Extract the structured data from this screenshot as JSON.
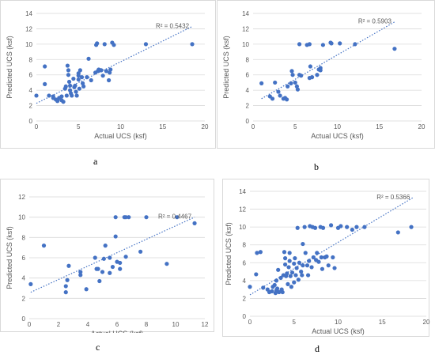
{
  "chart_data": [
    {
      "type": "scatter",
      "caption": "a",
      "xlabel": "Actual UCS  (ksf)",
      "ylabel": "Predicted  UCS  (ksf)",
      "xlim": [
        0,
        20
      ],
      "ylim": [
        0,
        14
      ],
      "xticks": [
        0,
        5,
        10,
        15,
        20
      ],
      "yticks": [
        0,
        2,
        4,
        6,
        8,
        10,
        12,
        14
      ],
      "grid": true,
      "r2_label": "R² = 0.5432",
      "trendline": {
        "x": [
          0,
          18.5
        ],
        "y": [
          2.3,
          12.3
        ]
      },
      "color": "#4472C4",
      "points": [
        [
          0,
          3.3
        ],
        [
          1,
          7.1
        ],
        [
          1,
          4.8
        ],
        [
          1.5,
          3.3
        ],
        [
          2,
          3.0
        ],
        [
          2,
          3.2
        ],
        [
          2.3,
          2.8
        ],
        [
          2.5,
          2.6
        ],
        [
          2.7,
          3.0
        ],
        [
          3,
          2.7
        ],
        [
          3,
          3.2
        ],
        [
          3.2,
          2.5
        ],
        [
          3.4,
          4.2
        ],
        [
          3.5,
          4.5
        ],
        [
          3.6,
          3.3
        ],
        [
          3.7,
          7.2
        ],
        [
          3.8,
          6.6
        ],
        [
          3.8,
          6.0
        ],
        [
          3.9,
          5.1
        ],
        [
          4,
          4.6
        ],
        [
          4,
          4.0
        ],
        [
          4.1,
          3.6
        ],
        [
          4.2,
          3.3
        ],
        [
          4.4,
          5.5
        ],
        [
          4.5,
          4.4
        ],
        [
          4.6,
          4.6
        ],
        [
          4.7,
          3.8
        ],
        [
          4.8,
          3.3
        ],
        [
          5,
          5.9
        ],
        [
          5,
          6.2
        ],
        [
          5,
          5.4
        ],
        [
          5.1,
          4.2
        ],
        [
          5.2,
          6.6
        ],
        [
          5.4,
          5.7
        ],
        [
          5.5,
          4.9
        ],
        [
          5.6,
          4.5
        ],
        [
          6,
          5.7
        ],
        [
          6.2,
          8.1
        ],
        [
          6.5,
          5.3
        ],
        [
          7,
          6.3
        ],
        [
          7.1,
          9.9
        ],
        [
          7.2,
          10.1
        ],
        [
          7.3,
          6.5
        ],
        [
          7.4,
          6.7
        ],
        [
          7.6,
          6.6
        ],
        [
          7.7,
          6.6
        ],
        [
          7.9,
          5.9
        ],
        [
          8.1,
          10.0
        ],
        [
          8.3,
          6.5
        ],
        [
          8.6,
          5.3
        ],
        [
          8.7,
          6.3
        ],
        [
          8.8,
          6.7
        ],
        [
          9,
          10.2
        ],
        [
          9.2,
          9.9
        ],
        [
          13,
          10.0
        ],
        [
          18.5,
          10.0
        ]
      ]
    },
    {
      "type": "scatter",
      "caption": "b",
      "xlabel": "Actual UCS  (ksf)",
      "ylabel": "Predicted  UCS  (ksf)",
      "xlim": [
        0,
        20
      ],
      "ylim": [
        0,
        14
      ],
      "xticks": [
        0,
        5,
        10,
        15,
        20
      ],
      "yticks": [
        0,
        2,
        4,
        6,
        8,
        10,
        12,
        14
      ],
      "grid": true,
      "r2_label": "R² = 0.5903",
      "trendline": {
        "x": [
          1,
          16.8
        ],
        "y": [
          2.9,
          12.9
        ]
      },
      "color": "#4472C4",
      "points": [
        [
          1,
          4.9
        ],
        [
          2,
          3.2
        ],
        [
          2.3,
          2.9
        ],
        [
          2.6,
          5.0
        ],
        [
          3,
          3.8
        ],
        [
          3.2,
          3.3
        ],
        [
          3.6,
          2.9
        ],
        [
          3.8,
          3.0
        ],
        [
          4,
          2.8
        ],
        [
          4.1,
          4.5
        ],
        [
          4.5,
          4.9
        ],
        [
          4.6,
          6.5
        ],
        [
          4.7,
          6.0
        ],
        [
          5,
          5.0
        ],
        [
          5.2,
          4.5
        ],
        [
          5.3,
          4.1
        ],
        [
          5.5,
          10.0
        ],
        [
          5.5,
          6.0
        ],
        [
          5.7,
          5.9
        ],
        [
          6.4,
          9.9
        ],
        [
          6.7,
          10.0
        ],
        [
          6.7,
          5.6
        ],
        [
          6.8,
          7.1
        ],
        [
          7,
          5.7
        ],
        [
          7.6,
          6.0
        ],
        [
          7.8,
          6.7
        ],
        [
          8,
          6.6
        ],
        [
          8,
          6.9
        ],
        [
          8.3,
          9.9
        ],
        [
          9.2,
          10.2
        ],
        [
          9.3,
          10.1
        ],
        [
          10.3,
          10.1
        ],
        [
          12.1,
          10.0
        ],
        [
          16.8,
          9.4
        ]
      ]
    },
    {
      "type": "scatter",
      "caption": "c",
      "xlabel": "Actual UCS  (ksf)",
      "ylabel": "Predicted  UCS  (ksf)",
      "xlim": [
        0,
        12
      ],
      "ylim": [
        0,
        12
      ],
      "xticks": [
        0,
        2,
        4,
        6,
        8,
        10,
        12
      ],
      "yticks": [
        0,
        2,
        4,
        6,
        8,
        10,
        12
      ],
      "grid": true,
      "r2_label": "R² = 0.4467",
      "trendline": {
        "x": [
          0.1,
          11.3
        ],
        "y": [
          2.6,
          10.0
        ]
      },
      "color": "#4472C4",
      "points": [
        [
          0.1,
          3.4
        ],
        [
          1,
          7.2
        ],
        [
          2.5,
          2.6
        ],
        [
          2.5,
          3.2
        ],
        [
          2.6,
          3.8
        ],
        [
          2.7,
          5.2
        ],
        [
          3.5,
          4.6
        ],
        [
          3.5,
          4.3
        ],
        [
          3.9,
          2.9
        ],
        [
          4.5,
          6.0
        ],
        [
          4.6,
          4.9
        ],
        [
          4.7,
          4.9
        ],
        [
          4.8,
          3.7
        ],
        [
          5,
          4.6
        ],
        [
          5.1,
          5.9
        ],
        [
          5.2,
          7.2
        ],
        [
          5.5,
          4.5
        ],
        [
          5.5,
          6.0
        ],
        [
          5.7,
          5.1
        ],
        [
          5.9,
          10.0
        ],
        [
          5.9,
          8.1
        ],
        [
          6,
          5.6
        ],
        [
          6.2,
          4.9
        ],
        [
          6.2,
          5.5
        ],
        [
          6.5,
          10.0
        ],
        [
          6.6,
          6.1
        ],
        [
          6.6,
          10.0
        ],
        [
          6.8,
          10.0
        ],
        [
          7.6,
          6.6
        ],
        [
          8,
          10.0
        ],
        [
          9.4,
          5.4
        ],
        [
          10.1,
          10.0
        ],
        [
          11.3,
          9.4
        ]
      ]
    },
    {
      "type": "scatter",
      "caption": "d",
      "xlabel": "Actual UCS  (ksf)",
      "ylabel": "Predicted  UCS  (ksf)",
      "xlim": [
        0,
        20
      ],
      "ylim": [
        0,
        14
      ],
      "xticks": [
        0,
        5,
        10,
        15,
        20
      ],
      "yticks": [
        0,
        2,
        4,
        6,
        8,
        10,
        12,
        14
      ],
      "grid": true,
      "r2_label": "R² = 0.5366",
      "trendline": {
        "x": [
          0,
          18.5
        ],
        "y": [
          2.4,
          13.3
        ]
      },
      "color": "#4472C4",
      "points": [
        [
          0,
          3.3
        ],
        [
          0.7,
          4.7
        ],
        [
          0.8,
          7.1
        ],
        [
          1.2,
          7.2
        ],
        [
          1.5,
          3.2
        ],
        [
          2,
          3.0
        ],
        [
          2.2,
          2.7
        ],
        [
          2.5,
          2.8
        ],
        [
          2.6,
          3.3
        ],
        [
          2.8,
          3.5
        ],
        [
          2.9,
          2.6
        ],
        [
          3,
          2.9
        ],
        [
          3,
          4.0
        ],
        [
          3.1,
          3.1
        ],
        [
          3.2,
          5.2
        ],
        [
          3.3,
          2.7
        ],
        [
          3.5,
          4.3
        ],
        [
          3.6,
          3.0
        ],
        [
          3.7,
          2.7
        ],
        [
          3.8,
          4.6
        ],
        [
          3.9,
          7.2
        ],
        [
          4,
          6.5
        ],
        [
          4,
          5.8
        ],
        [
          4.1,
          4.5
        ],
        [
          4.2,
          4.8
        ],
        [
          4.3,
          3.6
        ],
        [
          4.4,
          5.5
        ],
        [
          4.5,
          7.1
        ],
        [
          4.5,
          6.2
        ],
        [
          4.6,
          4.5
        ],
        [
          4.7,
          3.3
        ],
        [
          4.8,
          4.9
        ],
        [
          5,
          5.9
        ],
        [
          5,
          3.8
        ],
        [
          5.1,
          6.5
        ],
        [
          5.2,
          4.6
        ],
        [
          5.3,
          5.4
        ],
        [
          5.4,
          9.9
        ],
        [
          5.5,
          4.1
        ],
        [
          5.6,
          6.0
        ],
        [
          5.8,
          5.0
        ],
        [
          5.9,
          4.6
        ],
        [
          6,
          8.1
        ],
        [
          6,
          5.7
        ],
        [
          6.2,
          10.0
        ],
        [
          6.3,
          7.1
        ],
        [
          6.5,
          5.7
        ],
        [
          6.6,
          4.6
        ],
        [
          6.7,
          6.2
        ],
        [
          6.8,
          10.1
        ],
        [
          7,
          5.5
        ],
        [
          7.1,
          10.0
        ],
        [
          7.2,
          6.6
        ],
        [
          7.4,
          9.9
        ],
        [
          7.5,
          6.3
        ],
        [
          7.6,
          7.1
        ],
        [
          7.8,
          6.1
        ],
        [
          8,
          10.0
        ],
        [
          8.1,
          6.6
        ],
        [
          8.2,
          5.3
        ],
        [
          8.3,
          9.9
        ],
        [
          8.5,
          6.6
        ],
        [
          8.7,
          6.7
        ],
        [
          8.9,
          5.7
        ],
        [
          9.2,
          10.2
        ],
        [
          9.4,
          6.6
        ],
        [
          9.6,
          5.4
        ],
        [
          10,
          9.9
        ],
        [
          10.3,
          10.1
        ],
        [
          11,
          10.0
        ],
        [
          11.6,
          9.7
        ],
        [
          12.1,
          10.0
        ],
        [
          13,
          10.0
        ],
        [
          16.8,
          9.4
        ],
        [
          18.3,
          10.0
        ]
      ]
    }
  ]
}
